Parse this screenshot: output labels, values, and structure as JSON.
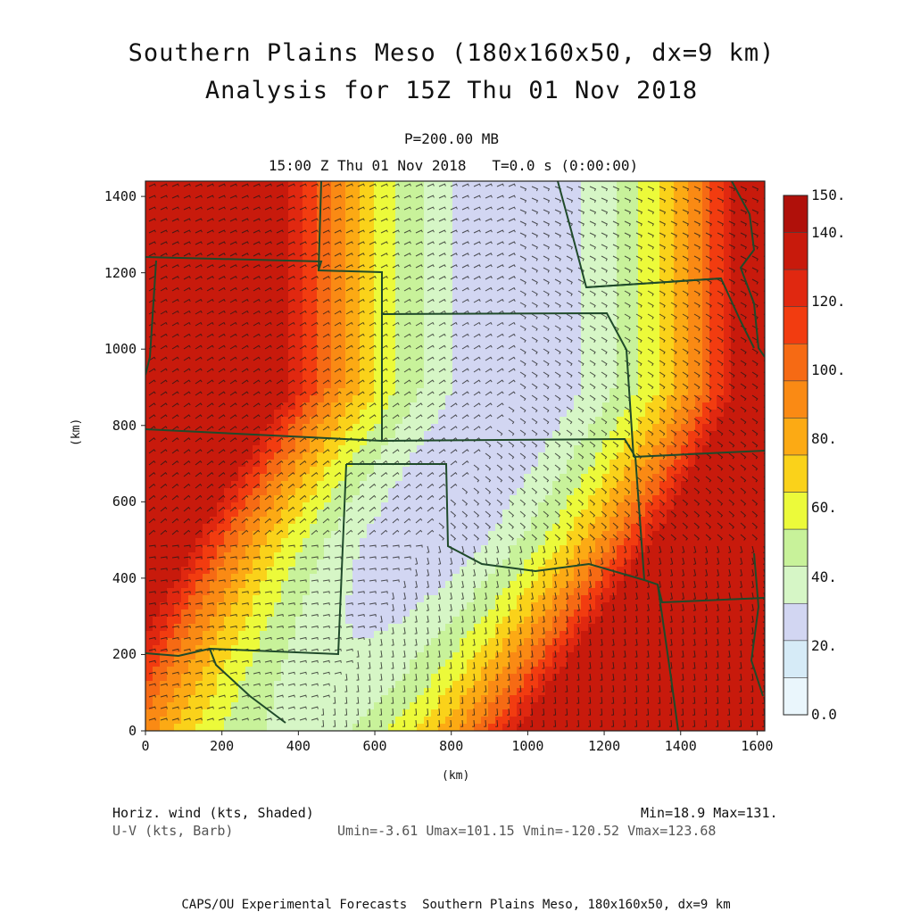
{
  "header": {
    "title_line1": "Southern Plains Meso (180x160x50, dx=9 km)",
    "title_line2": "Analysis for 15Z Thu 01 Nov 2018",
    "level": "P=200.00 MB",
    "time": "15:00 Z Thu 01 Nov 2018   T=0.0 s (0:00:00)"
  },
  "map": {
    "x_axis_label": "(km)",
    "y_axis_label": "(km)",
    "x_ticks": [
      "0",
      "200",
      "400",
      "600",
      "800",
      "1000",
      "1200",
      "1400",
      "1600"
    ],
    "y_ticks": [
      "0",
      "200",
      "400",
      "600",
      "800",
      "1000",
      "1200",
      "1400"
    ],
    "x_range_km": [
      0,
      1620
    ],
    "y_range_km": [
      0,
      1440
    ],
    "boundary_color": "#1f4a2a",
    "barb_color": "#1a1a1a"
  },
  "colorbar": {
    "labels": [
      "0.0",
      "20.",
      "40.",
      "60.",
      "80.",
      "100.",
      "120.",
      "140.",
      "150."
    ],
    "colors": [
      "#eaf6fc",
      "#d6ebf7",
      "#d2d6f2",
      "#d6f6c6",
      "#c8f29a",
      "#ecfa3a",
      "#fad21a",
      "#fcaa14",
      "#fa8a14",
      "#f66a14",
      "#f23c10",
      "#e02810",
      "#c81a0c",
      "#b0100a"
    ]
  },
  "stats": {
    "field_label": "Horiz. wind (kts, Shaded)",
    "vector_label": "U-V (kts, Barb)",
    "min_max": "Min=18.9 Max=131.",
    "uv_range": "Umin=-3.61 Umax=101.15 Vmin=-120.52 Vmax=123.68"
  },
  "footer": {
    "text": "CAPS/OU Experimental Forecasts  Southern Plains Meso, 180x160x50, dx=9 km"
  }
}
